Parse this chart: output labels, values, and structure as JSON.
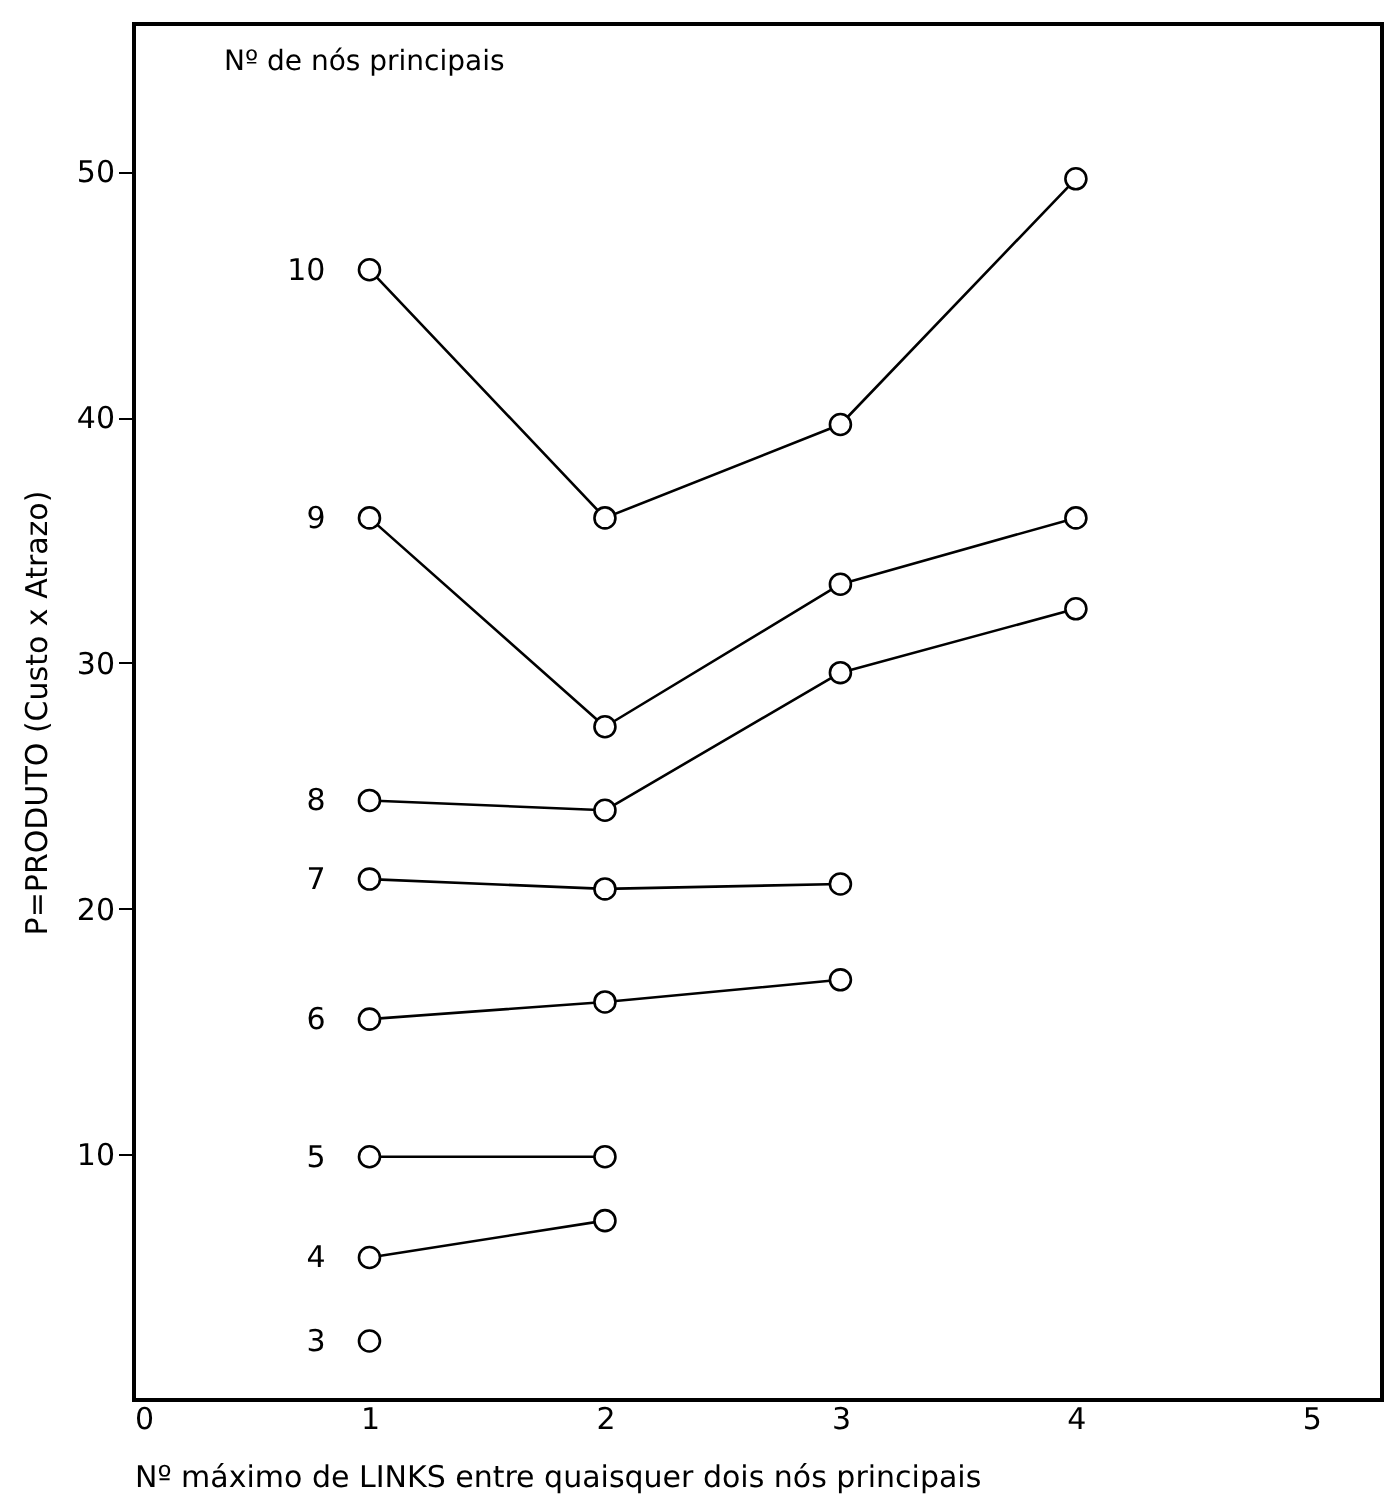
{
  "chart_data": {
    "type": "line",
    "xlabel": "Nº máximo de LINKS entre quaisquer dois nós principais",
    "ylabel": "P=PRODUTO (Custo x Atrazo)",
    "annotations": [
      "Nº de nós principais"
    ],
    "xlim": [
      0,
      5.3
    ],
    "ylim": [
      0,
      56
    ],
    "xticks": [
      0,
      1,
      2,
      3,
      4,
      5
    ],
    "yticks": [
      10,
      20,
      30,
      40,
      50
    ],
    "marker": "circle",
    "line_style": "solid",
    "grid": false,
    "legend": false,
    "series": [
      {
        "name": "10",
        "color": "#000000",
        "x": [
          1,
          2,
          3,
          4
        ],
        "values": [
          46.0,
          35.9,
          39.7,
          49.7
        ]
      },
      {
        "name": "9",
        "color": "#000000",
        "x": [
          1,
          2,
          3,
          4
        ],
        "values": [
          35.9,
          27.4,
          33.2,
          35.9
        ]
      },
      {
        "name": "8",
        "color": "#000000",
        "x": [
          1,
          2,
          3,
          4
        ],
        "values": [
          24.4,
          24.0,
          29.6,
          32.2
        ]
      },
      {
        "name": "7",
        "color": "#000000",
        "x": [
          1,
          2,
          3
        ],
        "values": [
          21.2,
          20.8,
          21.0
        ]
      },
      {
        "name": "6",
        "color": "#000000",
        "x": [
          1,
          2,
          3
        ],
        "values": [
          15.5,
          16.2,
          17.1
        ]
      },
      {
        "name": "5",
        "color": "#000000",
        "x": [
          1,
          2
        ],
        "values": [
          9.9,
          9.9
        ]
      },
      {
        "name": "4",
        "color": "#000000",
        "x": [
          1,
          2
        ],
        "values": [
          5.8,
          7.3
        ]
      },
      {
        "name": "3",
        "color": "#000000",
        "x": [
          1
        ],
        "values": [
          2.4
        ]
      }
    ]
  }
}
